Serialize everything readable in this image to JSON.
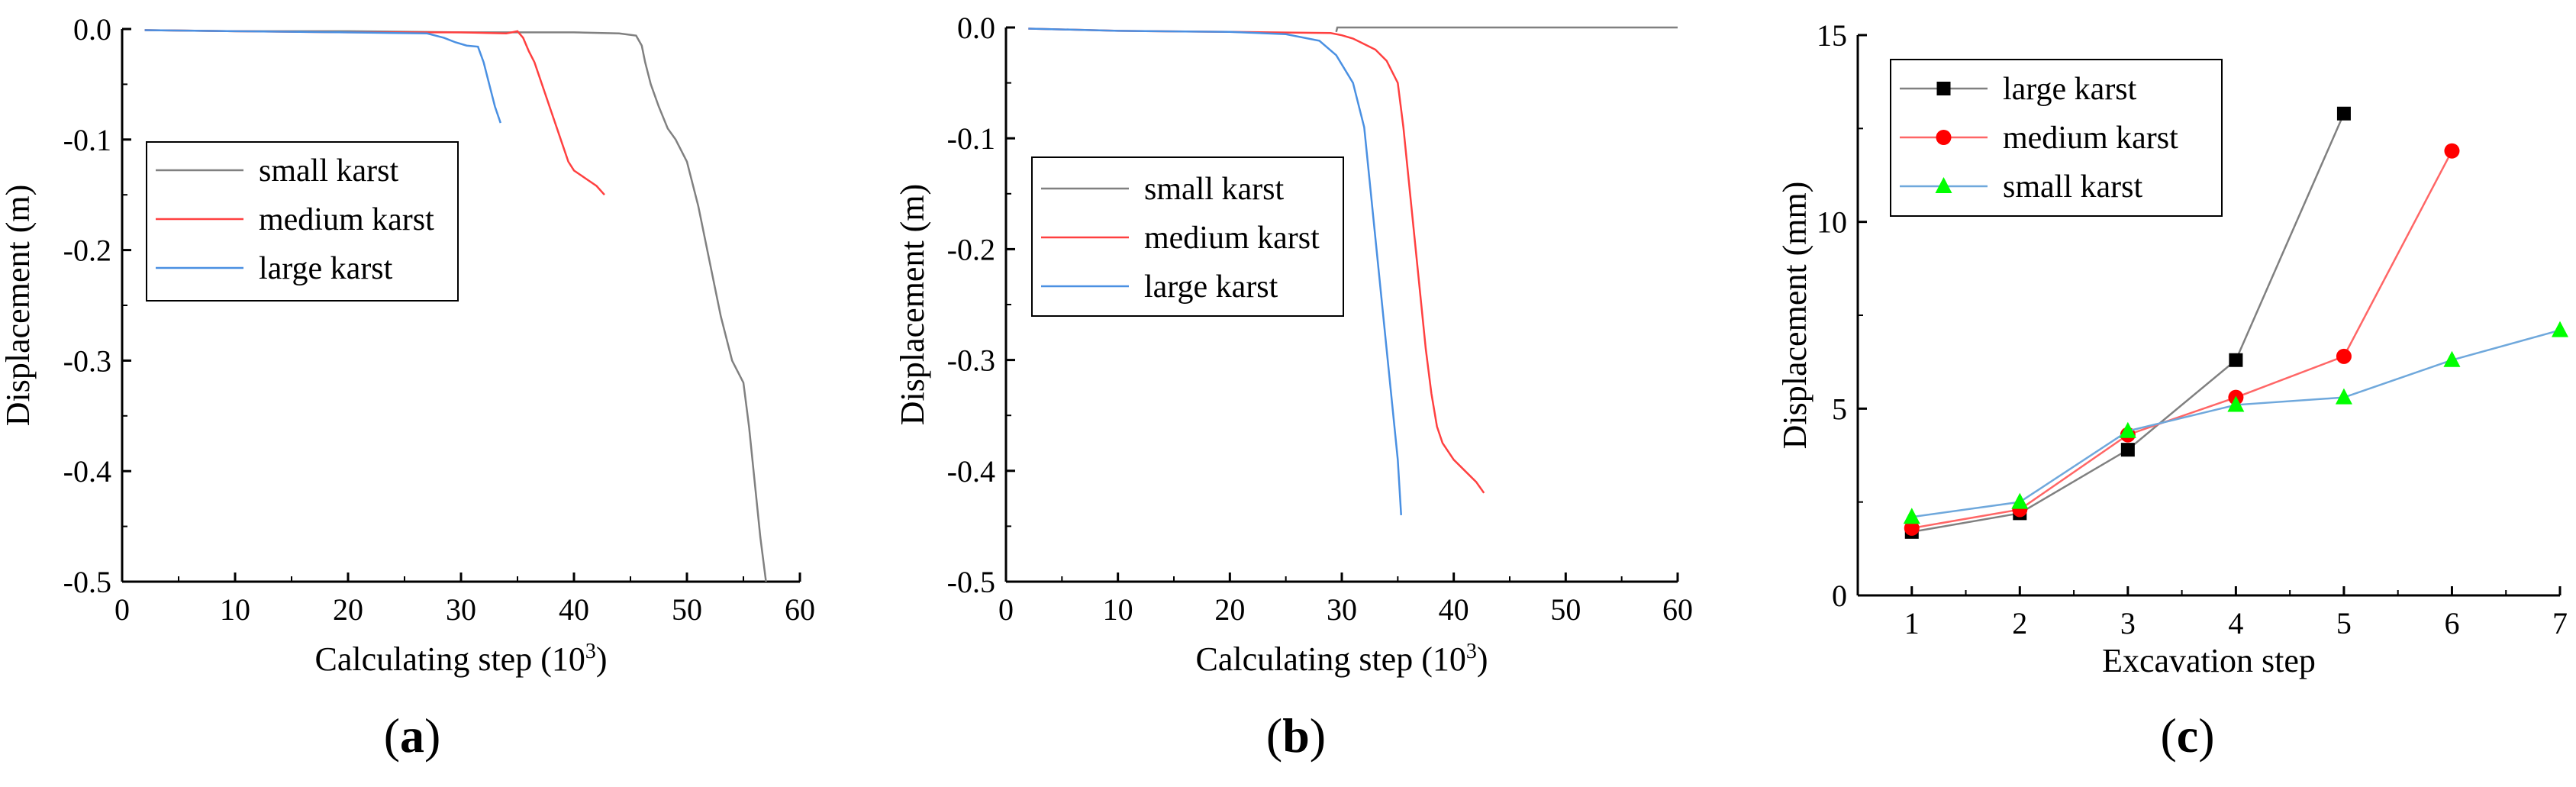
{
  "chart_data": [
    {
      "type": "line",
      "panel_label": "a",
      "title": "",
      "xlabel": "Calculating step (10",
      "xlabel_superscript": "3",
      "xlabel_suffix": ")",
      "ylabel": "Displacement (m)",
      "xlim": [
        0,
        60
      ],
      "ylim": [
        -0.5,
        0.0
      ],
      "xticks": [
        0,
        10,
        20,
        30,
        40,
        50,
        60
      ],
      "yticks": [
        0.0,
        -0.1,
        -0.2,
        -0.3,
        -0.4,
        -0.5
      ],
      "ytick_labels": [
        "0.0",
        "-0.1",
        "-0.2",
        "-0.3",
        "-0.4",
        "-0.5"
      ],
      "grid": false,
      "legend_position": "middle-left",
      "series": [
        {
          "name": "small karst",
          "color": "#808080",
          "x": [
            2,
            10,
            20,
            30,
            40,
            44,
            45.5,
            46,
            46.3,
            46.8,
            47.5,
            48.3,
            49,
            50,
            51,
            52,
            53,
            54,
            55,
            55.5,
            56,
            56.5,
            57
          ],
          "y": [
            -0.001,
            -0.002,
            -0.002,
            -0.003,
            -0.003,
            -0.004,
            -0.006,
            -0.015,
            -0.03,
            -0.05,
            -0.07,
            -0.09,
            -0.1,
            -0.12,
            -0.16,
            -0.21,
            -0.26,
            -0.3,
            -0.32,
            -0.36,
            -0.41,
            -0.46,
            -0.5
          ]
        },
        {
          "name": "medium karst",
          "color": "#ff4040",
          "x": [
            2,
            10,
            20,
            30,
            34,
            34.5,
            35,
            35.5,
            36,
            36.5,
            37,
            37.5,
            38,
            38.5,
            39,
            39.5,
            40,
            41,
            42,
            42.7
          ],
          "y": [
            -0.001,
            -0.002,
            -0.003,
            -0.003,
            -0.004,
            -0.003,
            -0.002,
            -0.008,
            -0.02,
            -0.03,
            -0.045,
            -0.06,
            -0.075,
            -0.09,
            -0.105,
            -0.12,
            -0.128,
            -0.135,
            -0.142,
            -0.15
          ]
        },
        {
          "name": "large karst",
          "color": "#4a90e2",
          "x": [
            2,
            10,
            20,
            27,
            28.5,
            29.5,
            30.5,
            31.5,
            32,
            32.5,
            33,
            33.5
          ],
          "y": [
            -0.001,
            -0.002,
            -0.003,
            -0.004,
            -0.008,
            -0.012,
            -0.015,
            -0.016,
            -0.03,
            -0.05,
            -0.07,
            -0.085
          ]
        }
      ]
    },
    {
      "type": "line",
      "panel_label": "b",
      "title": "",
      "xlabel": "Calculating step (10",
      "xlabel_superscript": "3",
      "xlabel_suffix": ")",
      "ylabel": "Displacement (m)",
      "xlim": [
        0,
        60
      ],
      "ylim": [
        -0.5,
        0.0
      ],
      "xticks": [
        0,
        10,
        20,
        30,
        40,
        50,
        60
      ],
      "yticks": [
        0.0,
        -0.1,
        -0.2,
        -0.3,
        -0.4,
        -0.5
      ],
      "ytick_labels": [
        "0.0",
        "-0.1",
        "-0.2",
        "-0.3",
        "-0.4",
        "-0.5"
      ],
      "grid": false,
      "legend_position": "middle-left",
      "series": [
        {
          "name": "small karst",
          "color": "#808080",
          "x": [
            29.5,
            29.6,
            30,
            40,
            50,
            60
          ],
          "y": [
            -0.004,
            0.0,
            0.0,
            0.0,
            0.0,
            0.0
          ]
        },
        {
          "name": "medium karst",
          "color": "#ff4040",
          "x": [
            2,
            10,
            20,
            29,
            30,
            31,
            32,
            33,
            34,
            35,
            35.5,
            36,
            36.5,
            37,
            37.5,
            38,
            38.5,
            39,
            40,
            41,
            42,
            42.7
          ],
          "y": [
            -0.001,
            -0.003,
            -0.004,
            -0.005,
            -0.007,
            -0.01,
            -0.015,
            -0.02,
            -0.03,
            -0.05,
            -0.09,
            -0.14,
            -0.19,
            -0.24,
            -0.29,
            -0.33,
            -0.36,
            -0.375,
            -0.39,
            -0.4,
            -0.41,
            -0.42
          ]
        },
        {
          "name": "large karst",
          "color": "#4a90e2",
          "x": [
            2,
            10,
            20,
            25,
            28,
            29.5,
            31,
            32,
            32.5,
            33,
            33.5,
            34,
            34.5,
            35,
            35.3
          ],
          "y": [
            -0.001,
            -0.003,
            -0.004,
            -0.006,
            -0.012,
            -0.025,
            -0.05,
            -0.09,
            -0.14,
            -0.19,
            -0.24,
            -0.29,
            -0.34,
            -0.39,
            -0.44
          ]
        }
      ]
    },
    {
      "type": "line",
      "panel_label": "c",
      "title": "",
      "xlabel": "Excavation step",
      "ylabel": "Displacement (mm)",
      "xlim": [
        0.5,
        7
      ],
      "ylim": [
        0,
        15
      ],
      "xticks": [
        1,
        2,
        3,
        4,
        5,
        6,
        7
      ],
      "yticks": [
        0,
        5,
        10,
        15
      ],
      "ytick_labels": [
        "0",
        "5",
        "10",
        "15"
      ],
      "grid": false,
      "legend_position": "top-left",
      "series": [
        {
          "name": "large karst",
          "color": "#000000",
          "line_color": "#808080",
          "marker": "square",
          "x": [
            1,
            2,
            3,
            4,
            5
          ],
          "y": [
            1.7,
            2.2,
            3.9,
            6.3,
            12.9
          ]
        },
        {
          "name": "medium karst",
          "color": "#ff0000",
          "line_color": "#ff6666",
          "marker": "circle",
          "x": [
            1,
            2,
            3,
            4,
            5,
            6
          ],
          "y": [
            1.8,
            2.3,
            4.3,
            5.3,
            6.4,
            11.9
          ]
        },
        {
          "name": "small karst",
          "color": "#00ff00",
          "line_color": "#6fa8dc",
          "marker": "triangle",
          "x": [
            1,
            2,
            3,
            4,
            5,
            6,
            7
          ],
          "y": [
            2.1,
            2.5,
            4.4,
            5.1,
            5.3,
            6.3,
            7.1
          ]
        }
      ]
    }
  ]
}
